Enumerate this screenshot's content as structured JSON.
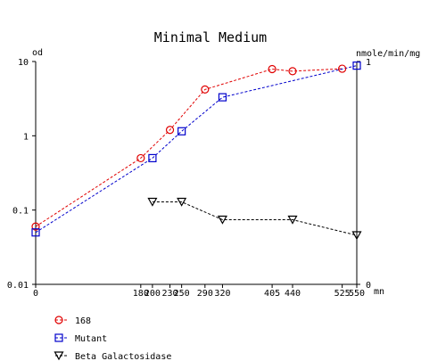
{
  "chart_data": {
    "type": "line",
    "title": "Minimal Medium",
    "left_axis_label": "od",
    "right_axis_label": "nmole/min/mg",
    "x_unit_label": "mn",
    "x_ticks": [
      0,
      180,
      200,
      230,
      250,
      290,
      320,
      405,
      440,
      525,
      550
    ],
    "x_tick_labels": [
      "0",
      "180",
      "200",
      "230",
      "250",
      "290",
      "320",
      "405",
      "440",
      "525",
      "550"
    ],
    "xlim": [
      0,
      550
    ],
    "y_left_scale": "log",
    "y_left_lim": [
      0.01,
      10
    ],
    "y_left_tick_labels": [
      "10",
      "1",
      "0.1",
      "0.01"
    ],
    "y_right_lim": [
      0,
      1
    ],
    "y_right_tick_labels": [
      "1",
      "0"
    ],
    "grid": false,
    "legend_position": "bottom-left",
    "series": [
      {
        "name": "168",
        "axis": "left",
        "marker": "circle",
        "color": "#e00000",
        "x": [
          0,
          180,
          230,
          290,
          405,
          440,
          525
        ],
        "y": [
          0.06,
          0.5,
          1.2,
          4.2,
          7.9,
          7.4,
          8.0
        ]
      },
      {
        "name": "Mutant",
        "axis": "left",
        "marker": "square",
        "color": "#0000cc",
        "x": [
          0,
          200,
          250,
          320,
          550
        ],
        "y": [
          0.05,
          0.5,
          1.15,
          3.3,
          8.8
        ]
      },
      {
        "name": "Beta Galactosidase",
        "axis": "right",
        "marker": "triangle-down",
        "color": "#000000",
        "x": [
          200,
          250,
          320,
          440,
          550
        ],
        "y": [
          0.37,
          0.37,
          0.29,
          0.29,
          0.22
        ]
      }
    ]
  }
}
